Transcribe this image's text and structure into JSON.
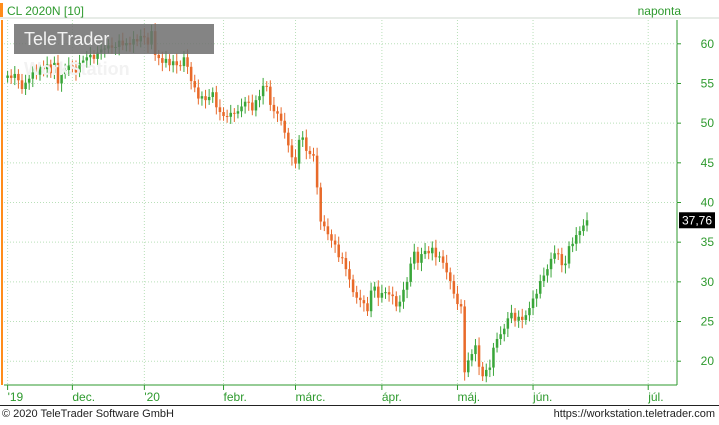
{
  "header": {
    "instrument": "CL 2020N [10]",
    "frequency": "naponta",
    "accent_color": "#ff8c1a",
    "text_color": "#2e9a2e"
  },
  "watermark": {
    "part1": "TeleTrader ",
    "part2": "WorkStation"
  },
  "footer": {
    "copyright": "© 2020 TeleTrader Software GmbH",
    "url": "https://workstation.teletrader.com"
  },
  "chart_data": {
    "type": "candlestick",
    "up_color": "#3aa63a",
    "down_color": "#e86a2a",
    "last_price_label": "37,76",
    "ylim": [
      17,
      63
    ],
    "y_ticks": [
      {
        "value": 20,
        "label": "20"
      },
      {
        "value": 25,
        "label": "25"
      },
      {
        "value": 30,
        "label": "30"
      },
      {
        "value": 35,
        "label": "35"
      },
      {
        "value": 40,
        "label": "40"
      },
      {
        "value": 45,
        "label": "45"
      },
      {
        "value": 50,
        "label": "50"
      },
      {
        "value": 55,
        "label": "55"
      },
      {
        "value": 60,
        "label": "60"
      }
    ],
    "x_ticks": [
      {
        "label": "'19",
        "pos": 0
      },
      {
        "label": "dec.",
        "pos": 18
      },
      {
        "label": "'20",
        "pos": 38
      },
      {
        "label": "febr.",
        "pos": 60
      },
      {
        "label": "márc.",
        "pos": 80
      },
      {
        "label": "ápr.",
        "pos": 104
      },
      {
        "label": "máj.",
        "pos": 125
      },
      {
        "label": "jún.",
        "pos": 146
      },
      {
        "label": "júl.",
        "pos": 178
      }
    ],
    "x_range": [
      -1,
      186
    ],
    "close": [
      56.0,
      55.7,
      56.2,
      55.4,
      54.3,
      55.1,
      55.6,
      56.4,
      56.1,
      57.1,
      56.8,
      57.4,
      56.3,
      57.6,
      55.0,
      56.2,
      56.7,
      57.3,
      57.1,
      56.4,
      57.6,
      57.9,
      58.3,
      58.6,
      58.1,
      58.9,
      59.3,
      59.4,
      59.8,
      59.5,
      59.6,
      60.4,
      59.8,
      60.1,
      59.9,
      60.6,
      60.3,
      61.0,
      60.8,
      59.9,
      61.6,
      58.6,
      58.2,
      57.6,
      58.1,
      57.3,
      57.8,
      57.3,
      57.2,
      58.3,
      57.1,
      55.3,
      54.5,
      53.1,
      53.4,
      52.9,
      53.3,
      53.9,
      52.0,
      51.4,
      50.9,
      50.8,
      51.3,
      51.2,
      51.5,
      52.1,
      52.7,
      52.6,
      51.6,
      52.9,
      53.4,
      54.7,
      54.6,
      52.3,
      51.5,
      51.2,
      50.3,
      48.8,
      47.2,
      45.7,
      44.9,
      47.9,
      48.2,
      46.5,
      46.1,
      45.9,
      41.9,
      37.6,
      37.0,
      36.0,
      35.2,
      34.7,
      33.1,
      33.0,
      31.6,
      30.3,
      28.7,
      28.0,
      27.7,
      27.3,
      26.3,
      28.9,
      29.4,
      28.0,
      28.6,
      28.7,
      28.4,
      28.2,
      26.9,
      27.5,
      29.0,
      30.0,
      32.3,
      33.8,
      32.4,
      33.5,
      33.9,
      33.6,
      34.3,
      33.1,
      33.2,
      32.4,
      31.2,
      30.1,
      28.5,
      27.2,
      26.9,
      18.6,
      20.1,
      20.9,
      22.0,
      19.3,
      18.1,
      18.9,
      19.2,
      21.7,
      22.8,
      23.4,
      24.1,
      25.4,
      26.1,
      25.1,
      25.6,
      25.2,
      25.8,
      26.7,
      27.9,
      28.5,
      30.1,
      30.8,
      31.6,
      32.9,
      33.6,
      33.5,
      32.1,
      32.3,
      34.5,
      34.8,
      35.9,
      36.4,
      37.1,
      37.76
    ]
  }
}
